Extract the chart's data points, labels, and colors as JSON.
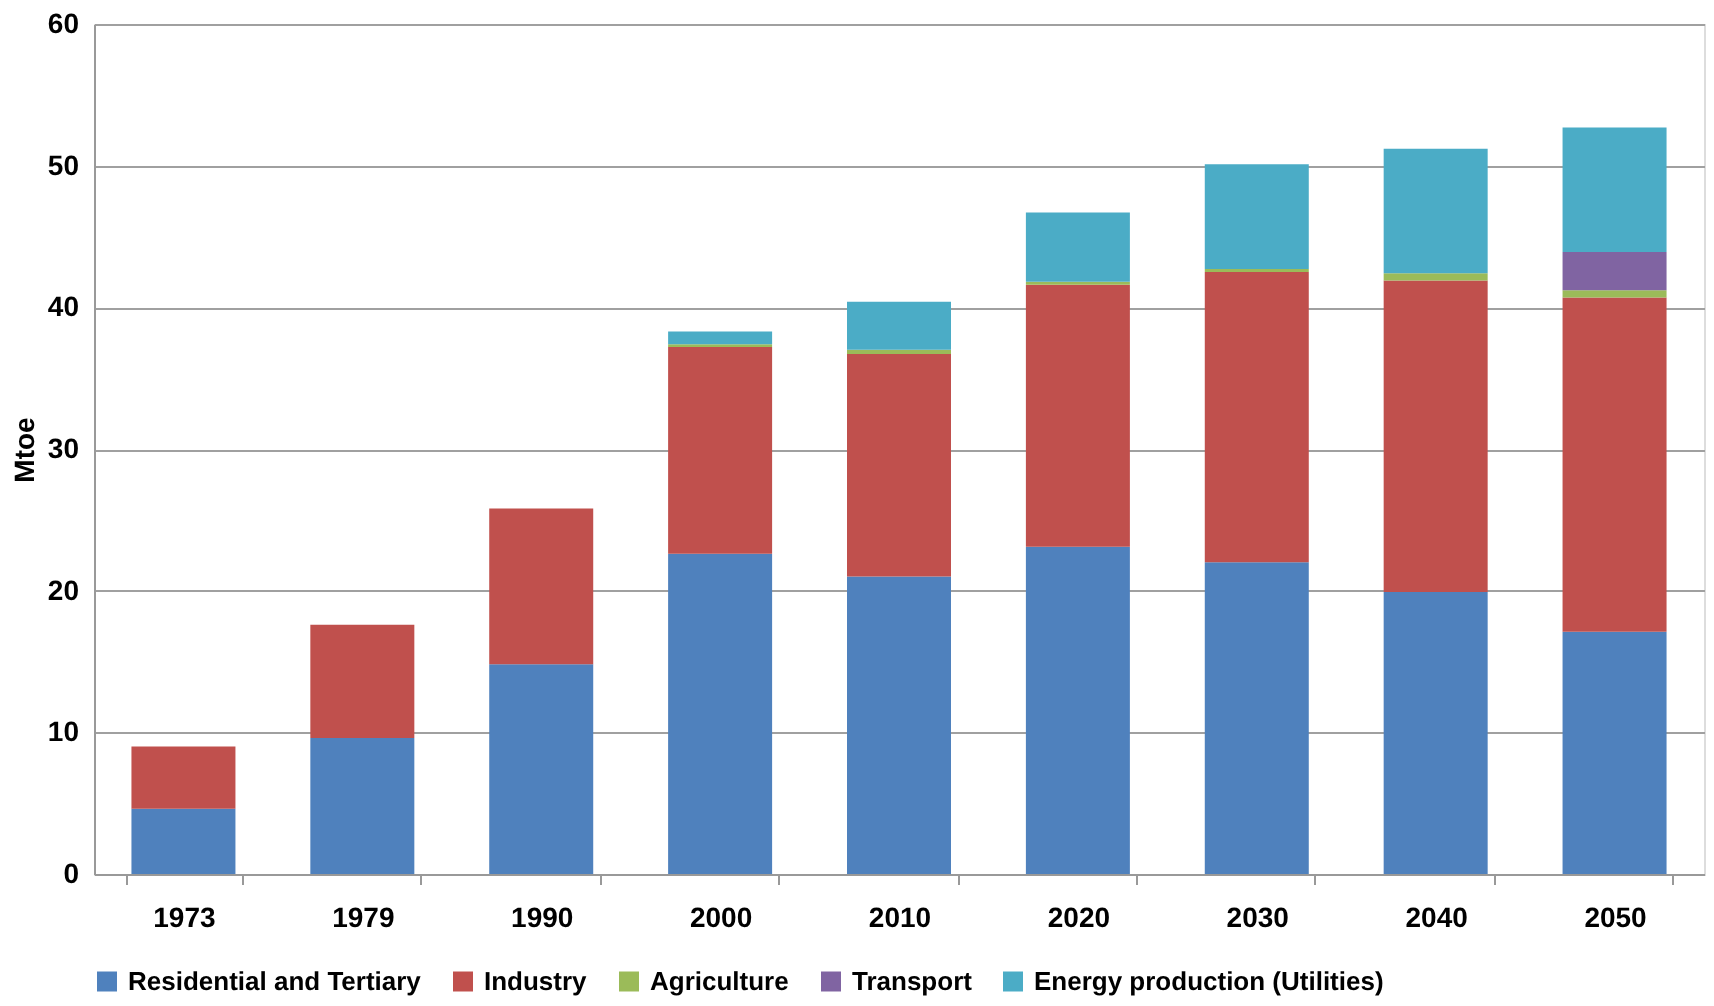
{
  "chart_data": {
    "type": "bar",
    "stacked": true,
    "ylabel": "Mtoe",
    "categories": [
      "1973",
      "1979",
      "1990",
      "2000",
      "2010",
      "2020",
      "2030",
      "2040",
      "2050"
    ],
    "series": [
      {
        "name": "Residential and Tertiary",
        "color": "#4f81bd",
        "values": [
          4.6,
          9.6,
          14.8,
          22.6,
          21.0,
          23.1,
          22.0,
          19.9,
          17.1
        ]
      },
      {
        "name": "Industry",
        "color": "#c0504d",
        "values": [
          4.4,
          8.0,
          11.0,
          14.6,
          15.7,
          18.5,
          20.5,
          22.0,
          23.6
        ]
      },
      {
        "name": "Agriculture",
        "color": "#9bbb59",
        "values": [
          0,
          0,
          0,
          0.2,
          0.3,
          0.2,
          0.2,
          0.5,
          0.5
        ]
      },
      {
        "name": "Transport",
        "color": "#8064a2",
        "values": [
          0,
          0,
          0,
          0,
          0,
          0,
          0,
          0,
          2.7
        ]
      },
      {
        "name": "Energy production (Utilities)",
        "color": "#4bacc6",
        "values": [
          0,
          0,
          0,
          0.9,
          3.4,
          4.9,
          7.4,
          8.8,
          8.8
        ]
      }
    ],
    "ylim": [
      0,
      60
    ],
    "yticks": [
      0,
      10,
      20,
      30,
      40,
      50,
      60
    ],
    "grid": "y",
    "legend": "bottom"
  }
}
